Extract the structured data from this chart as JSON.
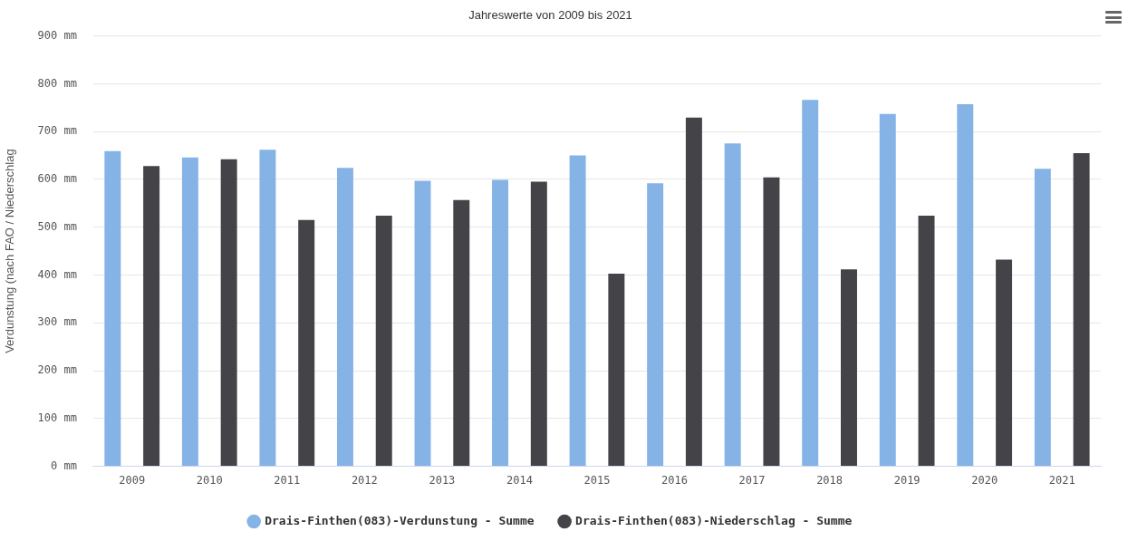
{
  "chart_data": {
    "type": "bar",
    "title": "Jahreswerte von 2009 bis 2021",
    "ylabel": "Verdunstung (nach FAO / Niederschlag",
    "categories": [
      "2009",
      "2010",
      "2011",
      "2012",
      "2013",
      "2014",
      "2015",
      "2016",
      "2017",
      "2018",
      "2019",
      "2020",
      "2021"
    ],
    "series": [
      {
        "name": "Drais-Finthen(083)-Verdunstung - Summe",
        "color": "#85b3e6",
        "values": [
          659,
          646,
          662,
          624,
          597,
          599,
          650,
          592,
          675,
          766,
          737,
          757,
          622
        ]
      },
      {
        "name": "Drais-Finthen(083)-Niederschlag - Summe",
        "color": "#434348",
        "values": [
          628,
          642,
          515,
          524,
          557,
          595,
          403,
          729,
          604,
          412,
          524,
          432,
          655
        ]
      }
    ],
    "ylim": [
      0,
      900
    ],
    "yticks": [
      {
        "value": 0,
        "label": "0 mm"
      },
      {
        "value": 100,
        "label": "100 mm"
      },
      {
        "value": 200,
        "label": "200 mm"
      },
      {
        "value": 300,
        "label": "300 mm"
      },
      {
        "value": 400,
        "label": "400 mm"
      },
      {
        "value": 500,
        "label": "500 mm"
      },
      {
        "value": 600,
        "label": "600 mm"
      },
      {
        "value": 700,
        "label": "700 mm"
      },
      {
        "value": 800,
        "label": "800 mm"
      },
      {
        "value": 900,
        "label": "900 mm"
      }
    ],
    "grid": "y",
    "legend": "bottom"
  }
}
